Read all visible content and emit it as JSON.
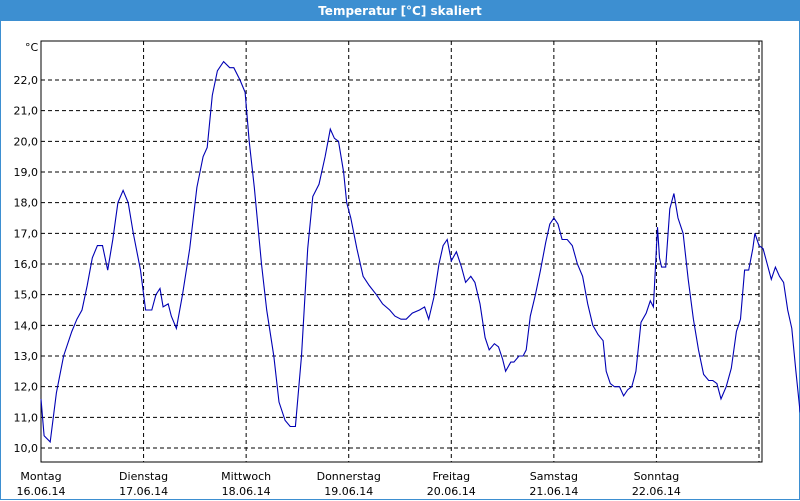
{
  "window": {
    "title": "Temperatur [°C] skaliert"
  },
  "colors": {
    "titlebar": "#3d8fd1",
    "series": "#0000b4",
    "grid": "#000000"
  },
  "chart_data": {
    "type": "line",
    "title": "Temperatur [°C] skaliert",
    "unit_label": "°C",
    "ylim": [
      9.7,
      23.2
    ],
    "y_ticks": [
      10.0,
      11.0,
      12.0,
      13.0,
      14.0,
      15.0,
      16.0,
      17.0,
      18.0,
      19.0,
      20.0,
      21.0,
      22.0
    ],
    "y_tick_labels": [
      "10,0",
      "11,0",
      "12,0",
      "13,0",
      "14,0",
      "15,0",
      "16,0",
      "17,0",
      "18,0",
      "19,0",
      "20,0",
      "21,0",
      "22,0"
    ],
    "xlim": [
      0,
      7.1
    ],
    "x_ticks": [
      {
        "day": "Montag",
        "date": "16.06.14"
      },
      {
        "day": "Dienstag",
        "date": "17.06.14"
      },
      {
        "day": "Mittwoch",
        "date": "18.06.14"
      },
      {
        "day": "Donnerstag",
        "date": "19.06.14"
      },
      {
        "day": "Freitag",
        "date": "20.06.14"
      },
      {
        "day": "Samstag",
        "date": "21.06.14"
      },
      {
        "day": "Sonntag",
        "date": "22.06.14"
      }
    ],
    "grid": true,
    "grid_style": "dashed",
    "series": [
      {
        "points": [
          [
            0.0,
            11.6
          ],
          [
            0.03,
            10.4
          ],
          [
            0.09,
            10.2
          ],
          [
            0.15,
            11.8
          ],
          [
            0.22,
            13.0
          ],
          [
            0.3,
            13.8
          ],
          [
            0.35,
            14.2
          ],
          [
            0.4,
            14.5
          ],
          [
            0.45,
            15.3
          ],
          [
            0.5,
            16.2
          ],
          [
            0.55,
            16.6
          ],
          [
            0.6,
            16.6
          ],
          [
            0.65,
            15.8
          ],
          [
            0.7,
            16.8
          ],
          [
            0.75,
            18.0
          ],
          [
            0.8,
            18.4
          ],
          [
            0.85,
            18.0
          ],
          [
            0.9,
            17.0
          ],
          [
            0.97,
            15.8
          ],
          [
            1.02,
            14.5
          ],
          [
            1.08,
            14.5
          ],
          [
            1.12,
            15.0
          ],
          [
            1.16,
            15.2
          ],
          [
            1.19,
            14.6
          ],
          [
            1.24,
            14.7
          ],
          [
            1.27,
            14.3
          ],
          [
            1.32,
            13.9
          ],
          [
            1.38,
            15.0
          ],
          [
            1.45,
            16.5
          ],
          [
            1.52,
            18.5
          ],
          [
            1.58,
            19.5
          ],
          [
            1.62,
            19.8
          ],
          [
            1.67,
            21.5
          ],
          [
            1.72,
            22.3
          ],
          [
            1.78,
            22.6
          ],
          [
            1.84,
            22.4
          ],
          [
            1.88,
            22.4
          ],
          [
            1.94,
            22.0
          ],
          [
            1.99,
            21.6
          ],
          [
            2.03,
            20.0
          ],
          [
            2.08,
            18.5
          ],
          [
            2.15,
            16.0
          ],
          [
            2.2,
            14.5
          ],
          [
            2.27,
            13.0
          ],
          [
            2.32,
            11.5
          ],
          [
            2.38,
            10.9
          ],
          [
            2.43,
            10.7
          ],
          [
            2.48,
            10.7
          ],
          [
            2.54,
            13.0
          ],
          [
            2.6,
            16.5
          ],
          [
            2.65,
            18.2
          ],
          [
            2.71,
            18.6
          ],
          [
            2.77,
            19.5
          ],
          [
            2.82,
            20.4
          ],
          [
            2.86,
            20.1
          ],
          [
            2.9,
            20.0
          ],
          [
            2.95,
            19.0
          ],
          [
            2.98,
            18.0
          ],
          [
            3.02,
            17.5
          ],
          [
            3.08,
            16.5
          ],
          [
            3.14,
            15.6
          ],
          [
            3.2,
            15.3
          ],
          [
            3.27,
            15.0
          ],
          [
            3.33,
            14.7
          ],
          [
            3.4,
            14.5
          ],
          [
            3.45,
            14.3
          ],
          [
            3.51,
            14.2
          ],
          [
            3.56,
            14.2
          ],
          [
            3.62,
            14.4
          ],
          [
            3.69,
            14.5
          ],
          [
            3.74,
            14.6
          ],
          [
            3.78,
            14.2
          ],
          [
            3.83,
            14.9
          ],
          [
            3.88,
            16.0
          ],
          [
            3.92,
            16.6
          ],
          [
            3.96,
            16.8
          ],
          [
            4.0,
            16.1
          ],
          [
            4.05,
            16.4
          ],
          [
            4.1,
            15.9
          ],
          [
            4.14,
            15.4
          ],
          [
            4.19,
            15.6
          ],
          [
            4.23,
            15.4
          ],
          [
            4.28,
            14.7
          ],
          [
            4.33,
            13.6
          ],
          [
            4.37,
            13.2
          ],
          [
            4.42,
            13.4
          ],
          [
            4.46,
            13.3
          ],
          [
            4.5,
            12.9
          ],
          [
            4.53,
            12.5
          ],
          [
            4.58,
            12.8
          ],
          [
            4.61,
            12.8
          ],
          [
            4.66,
            13.0
          ],
          [
            4.7,
            13.0
          ],
          [
            4.73,
            13.2
          ],
          [
            4.77,
            14.3
          ],
          [
            4.82,
            15.0
          ],
          [
            4.87,
            15.8
          ],
          [
            4.92,
            16.7
          ],
          [
            4.96,
            17.3
          ],
          [
            5.0,
            17.5
          ],
          [
            5.04,
            17.3
          ],
          [
            5.08,
            16.8
          ],
          [
            5.13,
            16.8
          ],
          [
            5.18,
            16.6
          ],
          [
            5.23,
            16.0
          ],
          [
            5.28,
            15.6
          ],
          [
            5.33,
            14.7
          ],
          [
            5.38,
            14.0
          ],
          [
            5.43,
            13.7
          ],
          [
            5.48,
            13.5
          ],
          [
            5.51,
            12.5
          ],
          [
            5.55,
            12.1
          ],
          [
            5.59,
            12.0
          ],
          [
            5.64,
            12.0
          ],
          [
            5.68,
            11.7
          ],
          [
            5.72,
            11.9
          ],
          [
            5.76,
            12.0
          ],
          [
            5.8,
            12.5
          ],
          [
            5.85,
            14.1
          ],
          [
            5.9,
            14.4
          ],
          [
            5.94,
            14.8
          ],
          [
            5.97,
            14.6
          ],
          [
            6.01,
            17.2
          ],
          [
            6.03,
            16.2
          ],
          [
            6.05,
            15.9
          ],
          [
            6.09,
            15.9
          ],
          [
            6.13,
            17.8
          ],
          [
            6.17,
            18.3
          ],
          [
            6.21,
            17.5
          ],
          [
            6.26,
            17.0
          ],
          [
            6.31,
            15.5
          ],
          [
            6.36,
            14.2
          ],
          [
            6.41,
            13.2
          ],
          [
            6.46,
            12.4
          ],
          [
            6.51,
            12.2
          ],
          [
            6.55,
            12.2
          ],
          [
            6.59,
            12.1
          ],
          [
            6.63,
            11.6
          ],
          [
            6.68,
            12.0
          ],
          [
            6.73,
            12.6
          ],
          [
            6.78,
            13.8
          ],
          [
            6.82,
            14.2
          ],
          [
            6.86,
            15.8
          ],
          [
            6.9,
            15.8
          ],
          [
            6.94,
            16.5
          ],
          [
            6.96,
            17.0
          ],
          [
            7.0,
            16.6
          ],
          [
            7.04,
            16.5
          ],
          [
            7.08,
            16.0
          ],
          [
            7.12,
            15.5
          ],
          [
            7.16,
            15.9
          ],
          [
            7.2,
            15.6
          ],
          [
            7.24,
            15.4
          ],
          [
            7.28,
            14.5
          ],
          [
            7.32,
            13.9
          ],
          [
            7.36,
            12.5
          ],
          [
            7.4,
            11.2
          ],
          [
            7.45,
            10.6
          ]
        ]
      }
    ]
  }
}
